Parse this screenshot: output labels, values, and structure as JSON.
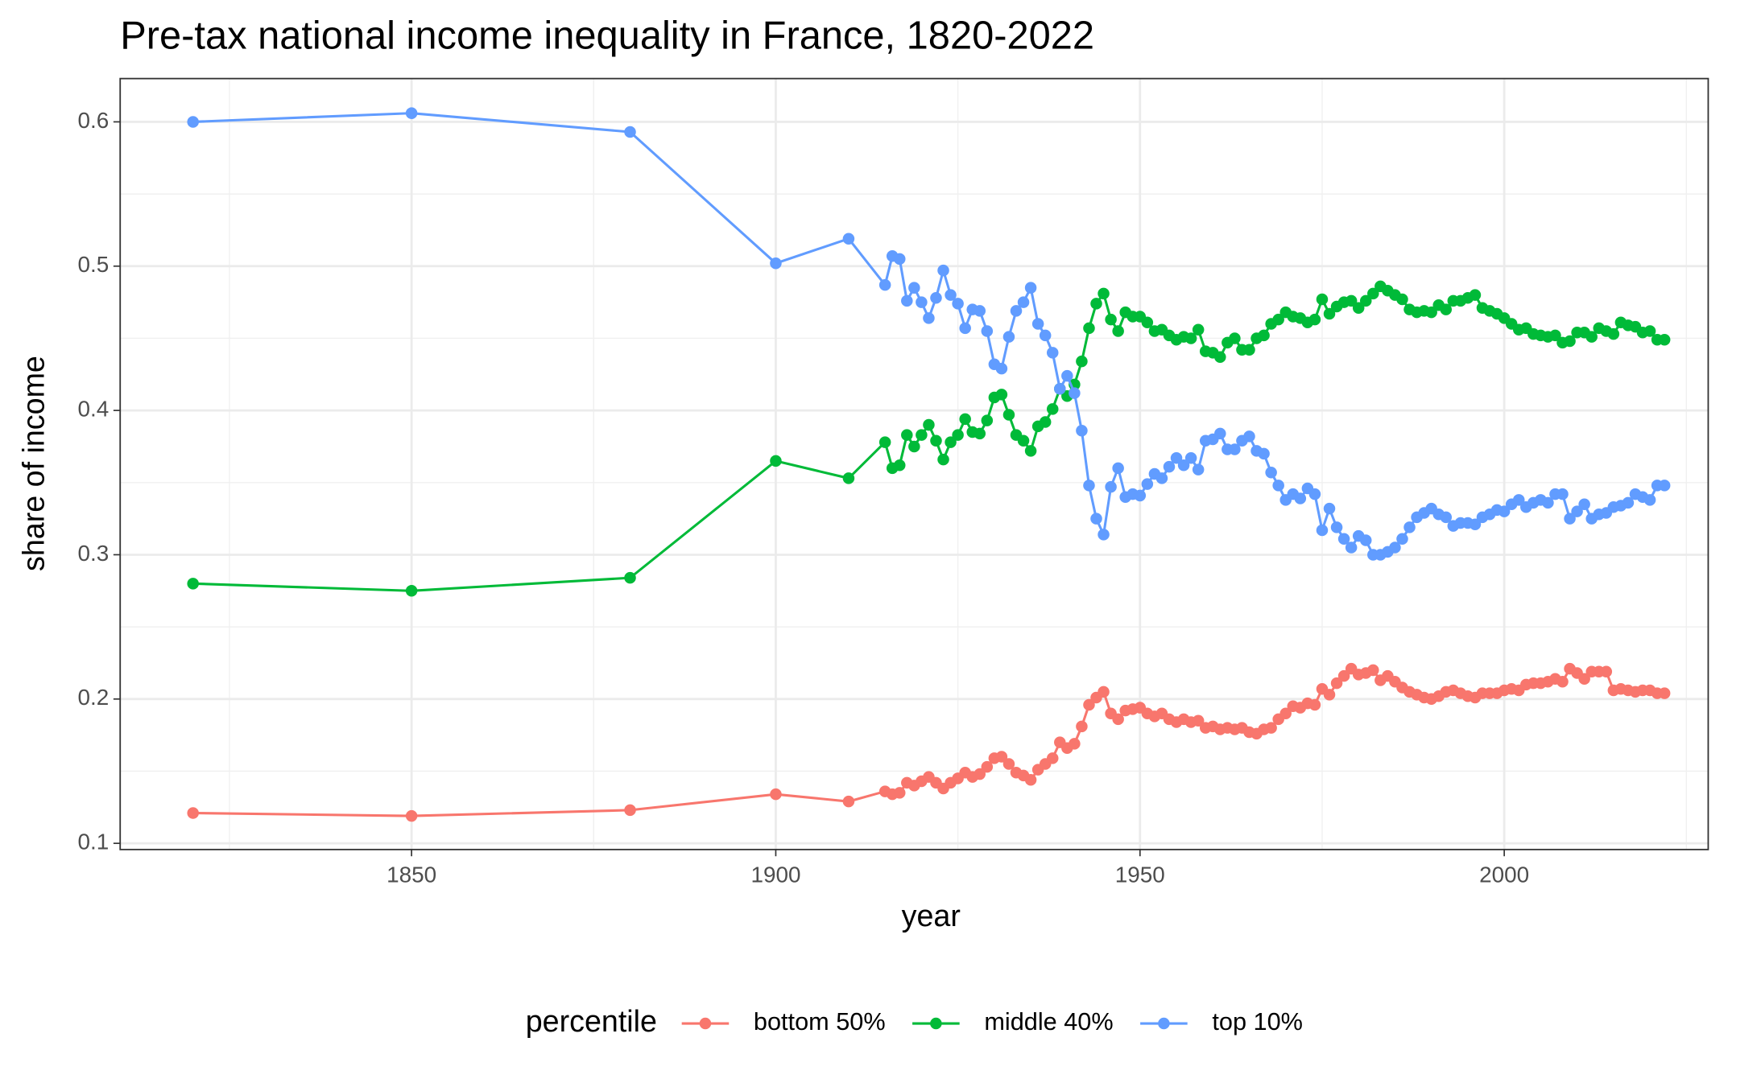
{
  "chart_data": {
    "type": "line",
    "title": "Pre-tax national income inequality in France, 1820-2022",
    "x_label": "year",
    "y_label": "share of income",
    "legend_title": "percentile",
    "legend_position": "bottom",
    "grid": true,
    "xlim": [
      1810,
      2028
    ],
    "ylim": [
      0.0957,
      0.63
    ],
    "xticks": [
      1850,
      1900,
      1950,
      2000
    ],
    "yticks": [
      0.1,
      0.2,
      0.3,
      0.4,
      0.5,
      0.6
    ],
    "x": [
      1820,
      1850,
      1880,
      1900,
      1910,
      1915,
      1916,
      1917,
      1918,
      1919,
      1920,
      1921,
      1922,
      1923,
      1924,
      1925,
      1926,
      1927,
      1928,
      1929,
      1930,
      1931,
      1932,
      1933,
      1934,
      1935,
      1936,
      1937,
      1938,
      1939,
      1940,
      1941,
      1942,
      1943,
      1944,
      1945,
      1946,
      1947,
      1948,
      1949,
      1950,
      1951,
      1952,
      1953,
      1954,
      1955,
      1956,
      1957,
      1958,
      1959,
      1960,
      1961,
      1962,
      1963,
      1964,
      1965,
      1966,
      1967,
      1968,
      1969,
      1970,
      1971,
      1972,
      1973,
      1974,
      1975,
      1976,
      1977,
      1978,
      1979,
      1980,
      1981,
      1982,
      1983,
      1984,
      1985,
      1986,
      1987,
      1988,
      1989,
      1990,
      1991,
      1992,
      1993,
      1994,
      1995,
      1996,
      1997,
      1998,
      1999,
      2000,
      2001,
      2002,
      2003,
      2004,
      2005,
      2006,
      2007,
      2008,
      2009,
      2010,
      2011,
      2012,
      2013,
      2014,
      2015,
      2016,
      2017,
      2018,
      2019,
      2020,
      2021,
      2022
    ],
    "series": [
      {
        "name": "bottom 50%",
        "color": "#F8766D",
        "values": [
          0.121,
          0.119,
          0.123,
          0.134,
          0.129,
          0.136,
          0.134,
          0.135,
          0.142,
          0.14,
          0.143,
          0.146,
          0.142,
          0.138,
          0.142,
          0.145,
          0.149,
          0.146,
          0.148,
          0.153,
          0.159,
          0.16,
          0.155,
          0.149,
          0.147,
          0.144,
          0.151,
          0.155,
          0.159,
          0.17,
          0.166,
          0.169,
          0.181,
          0.196,
          0.201,
          0.205,
          0.19,
          0.186,
          0.192,
          0.193,
          0.194,
          0.19,
          0.188,
          0.19,
          0.186,
          0.184,
          0.186,
          0.184,
          0.185,
          0.18,
          0.181,
          0.179,
          0.18,
          0.179,
          0.18,
          0.177,
          0.176,
          0.179,
          0.18,
          0.186,
          0.19,
          0.195,
          0.194,
          0.197,
          0.196,
          0.207,
          0.203,
          0.211,
          0.216,
          0.221,
          0.217,
          0.218,
          0.22,
          0.213,
          0.216,
          0.212,
          0.208,
          0.205,
          0.203,
          0.201,
          0.2,
          0.202,
          0.205,
          0.206,
          0.204,
          0.202,
          0.201,
          0.204,
          0.204,
          0.204,
          0.206,
          0.207,
          0.206,
          0.21,
          0.211,
          0.211,
          0.212,
          0.214,
          0.212,
          0.221,
          0.218,
          0.214,
          0.219,
          0.219,
          0.219,
          0.206,
          0.207,
          0.206,
          0.205,
          0.206,
          0.206,
          0.204,
          0.204
        ]
      },
      {
        "name": "middle 40%",
        "color": "#00BA38",
        "values": [
          0.28,
          0.275,
          0.284,
          0.365,
          0.353,
          0.378,
          0.36,
          0.362,
          0.383,
          0.375,
          0.383,
          0.39,
          0.379,
          0.366,
          0.378,
          0.383,
          0.394,
          0.385,
          0.384,
          0.393,
          0.409,
          0.411,
          0.397,
          0.383,
          0.379,
          0.372,
          0.389,
          0.392,
          0.401,
          0.415,
          0.41,
          0.418,
          0.434,
          0.457,
          0.474,
          0.481,
          0.463,
          0.455,
          0.468,
          0.465,
          0.465,
          0.461,
          0.455,
          0.456,
          0.452,
          0.449,
          0.451,
          0.45,
          0.456,
          0.441,
          0.44,
          0.437,
          0.447,
          0.45,
          0.442,
          0.442,
          0.45,
          0.452,
          0.46,
          0.463,
          0.468,
          0.465,
          0.464,
          0.461,
          0.463,
          0.477,
          0.467,
          0.472,
          0.475,
          0.476,
          0.471,
          0.476,
          0.481,
          0.486,
          0.483,
          0.48,
          0.477,
          0.47,
          0.468,
          0.469,
          0.468,
          0.473,
          0.47,
          0.476,
          0.476,
          0.478,
          0.48,
          0.471,
          0.469,
          0.467,
          0.464,
          0.46,
          0.456,
          0.457,
          0.453,
          0.452,
          0.451,
          0.452,
          0.447,
          0.448,
          0.454,
          0.454,
          0.451,
          0.457,
          0.455,
          0.453,
          0.461,
          0.459,
          0.458,
          0.454,
          0.455,
          0.449,
          0.449
        ]
      },
      {
        "name": "top 10%",
        "color": "#619CFF",
        "values": [
          0.6,
          0.606,
          0.593,
          0.502,
          0.519,
          0.487,
          0.507,
          0.505,
          0.476,
          0.485,
          0.475,
          0.464,
          0.478,
          0.497,
          0.48,
          0.474,
          0.457,
          0.47,
          0.469,
          0.455,
          0.432,
          0.429,
          0.451,
          0.469,
          0.475,
          0.485,
          0.46,
          0.452,
          0.44,
          0.415,
          0.424,
          0.412,
          0.386,
          0.348,
          0.325,
          0.314,
          0.347,
          0.36,
          0.34,
          0.342,
          0.341,
          0.349,
          0.356,
          0.353,
          0.361,
          0.367,
          0.362,
          0.367,
          0.359,
          0.379,
          0.38,
          0.384,
          0.373,
          0.373,
          0.379,
          0.382,
          0.372,
          0.37,
          0.357,
          0.348,
          0.338,
          0.342,
          0.339,
          0.346,
          0.342,
          0.317,
          0.332,
          0.319,
          0.311,
          0.305,
          0.313,
          0.31,
          0.3,
          0.3,
          0.302,
          0.305,
          0.311,
          0.319,
          0.326,
          0.329,
          0.332,
          0.328,
          0.326,
          0.32,
          0.322,
          0.322,
          0.321,
          0.326,
          0.328,
          0.331,
          0.33,
          0.335,
          0.338,
          0.333,
          0.336,
          0.338,
          0.336,
          0.342,
          0.342,
          0.325,
          0.33,
          0.335,
          0.325,
          0.328,
          0.329,
          0.333,
          0.334,
          0.336,
          0.342,
          0.34,
          0.338,
          0.348,
          0.348
        ]
      }
    ]
  }
}
